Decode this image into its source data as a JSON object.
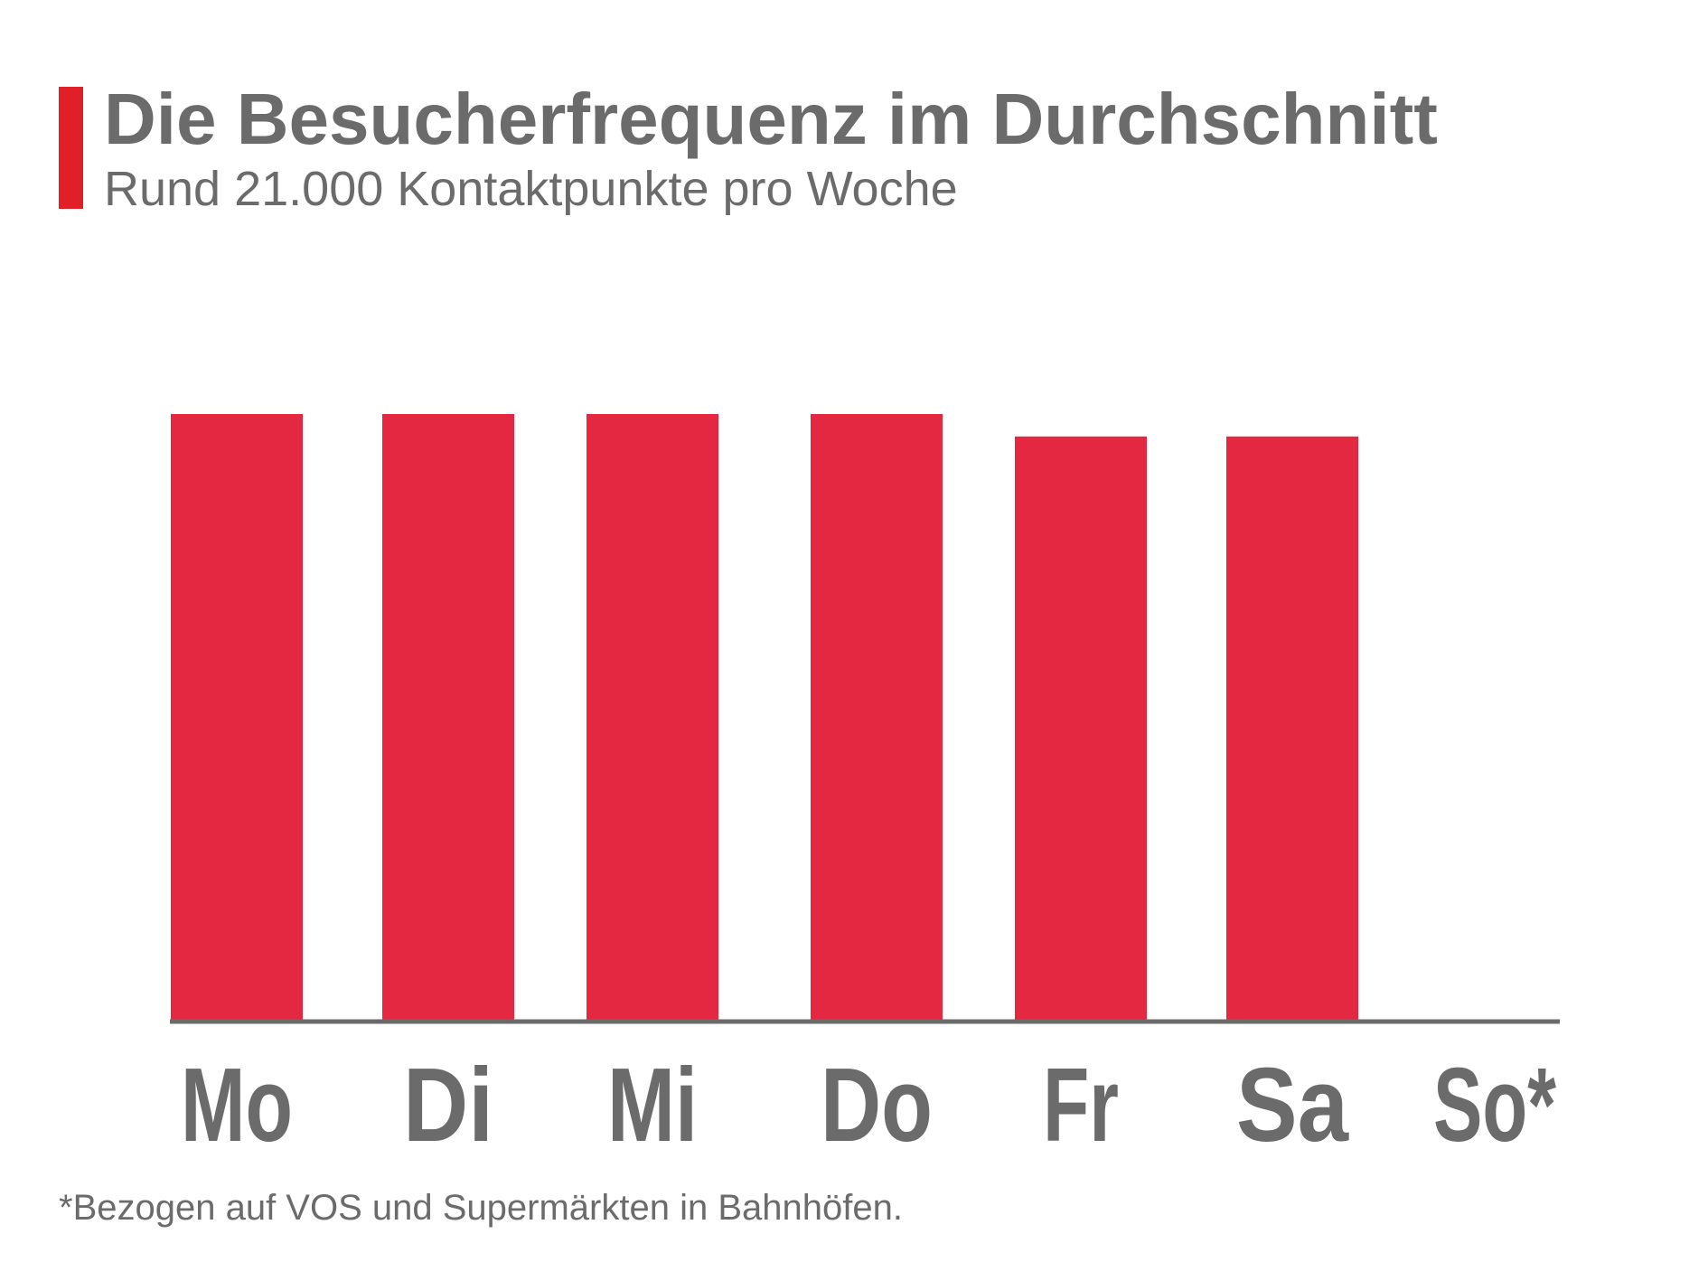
{
  "header": {
    "title": "Die Besucherfrequenz im Durchschnitt",
    "subtitle": "Rund 21.000 Kontaktpunkte pro Woche"
  },
  "footnote": "*Bezogen auf VOS und Supermärkten in Bahnhöfen.",
  "colors": {
    "accent": "#e01f26",
    "bar": "#e52842",
    "text": "#6b6b6b",
    "axis": "#6b6b6b"
  },
  "chart_data": {
    "type": "bar",
    "categories": [
      "Mo",
      "Di",
      "Mi",
      "Do",
      "Fr",
      "Sa",
      "So*"
    ],
    "values": [
      100,
      100,
      100,
      100,
      96.3,
      96.3,
      0
    ],
    "title": "Die Besucherfrequenz im Durchschnitt",
    "subtitle": "Rund 21.000 Kontaktpunkte pro Woche",
    "xlabel": "",
    "ylabel": "",
    "ylim": [
      0,
      100
    ],
    "grid": false,
    "legend": "none"
  }
}
